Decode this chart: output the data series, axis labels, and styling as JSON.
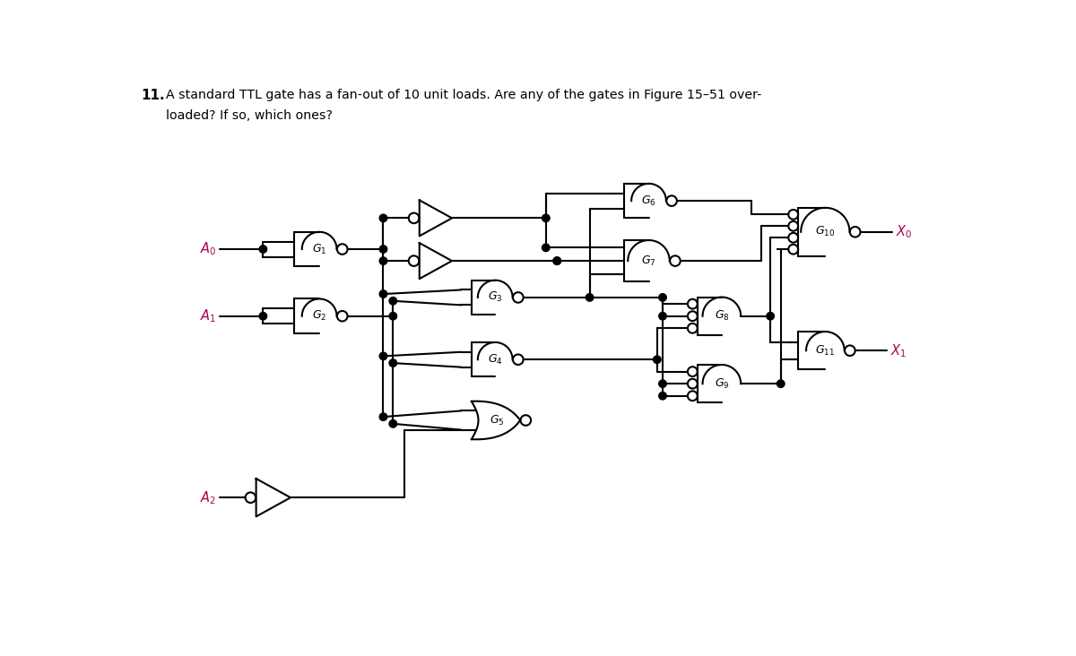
{
  "bg_color": "#ffffff",
  "line_color": "#000000",
  "label_color": "#aa0055",
  "gate_label_color": "#000000",
  "figsize": [
    12.0,
    7.32
  ],
  "dpi": 100,
  "lw": 1.5
}
